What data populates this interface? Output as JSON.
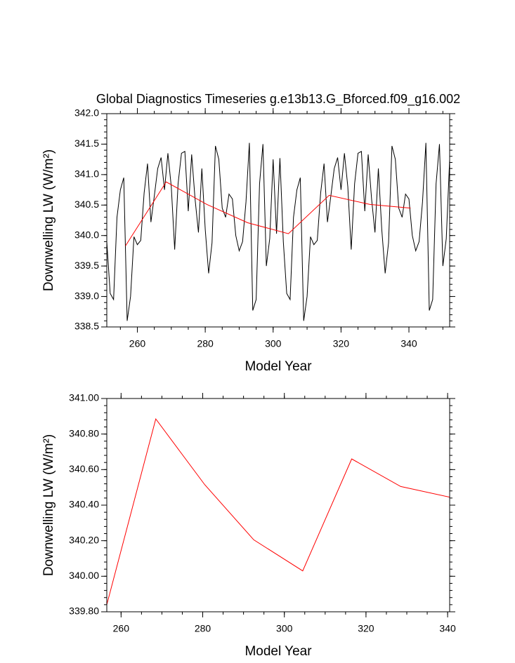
{
  "chart_data": [
    {
      "type": "line",
      "title": "Global Diagnostics Timeseries g.e13b13.G_Bforced.f09_g16.002",
      "x_label": "Model Year",
      "y_label": "Downwelling LW (W/m²)",
      "xlim": [
        251,
        352
      ],
      "xticks": [
        260,
        280,
        300,
        320,
        340
      ],
      "ylim": [
        338.5,
        342.0
      ],
      "yticks": [
        {
          "value": 338.5,
          "label": "338.5"
        },
        {
          "value": 339.0,
          "label": "339.0"
        },
        {
          "value": 339.5,
          "label": "339.5"
        },
        {
          "value": 340.0,
          "label": "340.0"
        },
        {
          "value": 340.5,
          "label": "340.5"
        },
        {
          "value": 341.0,
          "label": "341.0"
        },
        {
          "value": 341.5,
          "label": "341.5"
        },
        {
          "value": 342.0,
          "label": "342.0"
        }
      ],
      "series": [
        {
          "color": "#000000",
          "x": [
            251,
            252,
            253,
            254,
            255,
            256,
            257,
            258,
            259,
            260,
            261,
            262,
            263,
            264,
            265,
            266,
            267,
            268,
            269,
            270,
            271,
            272,
            273,
            274,
            275,
            276,
            277,
            278,
            279,
            280,
            281,
            282,
            283,
            284,
            285,
            286,
            287,
            288,
            289,
            290,
            291,
            292,
            293,
            294,
            295,
            296,
            297,
            298,
            299,
            300,
            301,
            302,
            303,
            304,
            305,
            306,
            307,
            308,
            309,
            310,
            311,
            312,
            313,
            314,
            315,
            316,
            317,
            318,
            319,
            320,
            321,
            322,
            323,
            324,
            325,
            326,
            327,
            328,
            329,
            330,
            331,
            332,
            333,
            334,
            335,
            336,
            337,
            338,
            339,
            340,
            341,
            342,
            343,
            344,
            345,
            346,
            347,
            348,
            349,
            350,
            351,
            352
          ],
          "values": [
            339.9,
            339.05,
            338.95,
            340.3,
            340.75,
            340.95,
            338.6,
            339.0,
            339.98,
            339.85,
            339.92,
            340.7,
            341.18,
            340.22,
            340.65,
            341.1,
            341.28,
            340.75,
            341.35,
            340.8,
            339.77,
            340.85,
            341.35,
            341.38,
            340.4,
            341.33,
            340.6,
            340.05,
            341.1,
            340.1,
            339.38,
            339.88,
            341.47,
            341.25,
            340.45,
            340.3,
            340.68,
            340.6,
            340.0,
            339.75,
            339.9,
            340.55,
            341.52,
            338.77,
            338.95,
            340.85,
            341.5,
            339.5,
            339.95,
            341.25,
            340.03,
            341.27,
            339.9,
            339.05,
            338.95,
            340.3,
            340.75,
            340.95,
            338.6,
            339.0,
            339.98,
            339.85,
            339.92,
            340.7,
            341.18,
            340.22,
            340.65,
            341.1,
            341.28,
            340.75,
            341.35,
            340.8,
            339.77,
            340.85,
            341.35,
            341.38,
            340.4,
            341.33,
            340.6,
            340.05,
            341.1,
            340.1,
            339.38,
            339.88,
            341.47,
            341.25,
            340.45,
            340.3,
            340.68,
            340.6,
            340.0,
            339.75,
            339.9,
            340.55,
            341.52,
            338.77,
            338.95,
            340.85,
            341.5,
            339.5,
            339.95,
            341.25
          ]
        },
        {
          "color": "#ff0000",
          "x": [
            256.5,
            268.5,
            280.5,
            292.5,
            304.5,
            316.5,
            328.5,
            340.5
          ],
          "values": [
            339.83,
            340.88,
            340.51,
            340.21,
            340.03,
            340.66,
            340.51,
            340.45
          ]
        }
      ]
    },
    {
      "type": "line",
      "x_label": "Model Year",
      "y_label": "Downwelling LW (W/m²)",
      "xlim": [
        256.5,
        340.5
      ],
      "xticks": [
        260,
        280,
        300,
        320,
        340
      ],
      "ylim": [
        339.8,
        341.0
      ],
      "yticks": [
        {
          "value": 339.8,
          "label": "339.80"
        },
        {
          "value": 340.0,
          "label": "340.00"
        },
        {
          "value": 340.2,
          "label": "340.20"
        },
        {
          "value": 340.4,
          "label": "340.40"
        },
        {
          "value": 340.6,
          "label": "340.60"
        },
        {
          "value": 340.8,
          "label": "340.80"
        },
        {
          "value": 341.0,
          "label": "341.00"
        }
      ],
      "series": [
        {
          "color": "#ff0000",
          "x": [
            256.5,
            268.5,
            280.5,
            292.5,
            304.5,
            316.5,
            328.5,
            340.5
          ],
          "values": [
            339.84,
            340.885,
            340.515,
            340.205,
            340.03,
            340.66,
            340.505,
            340.445
          ]
        }
      ]
    }
  ]
}
